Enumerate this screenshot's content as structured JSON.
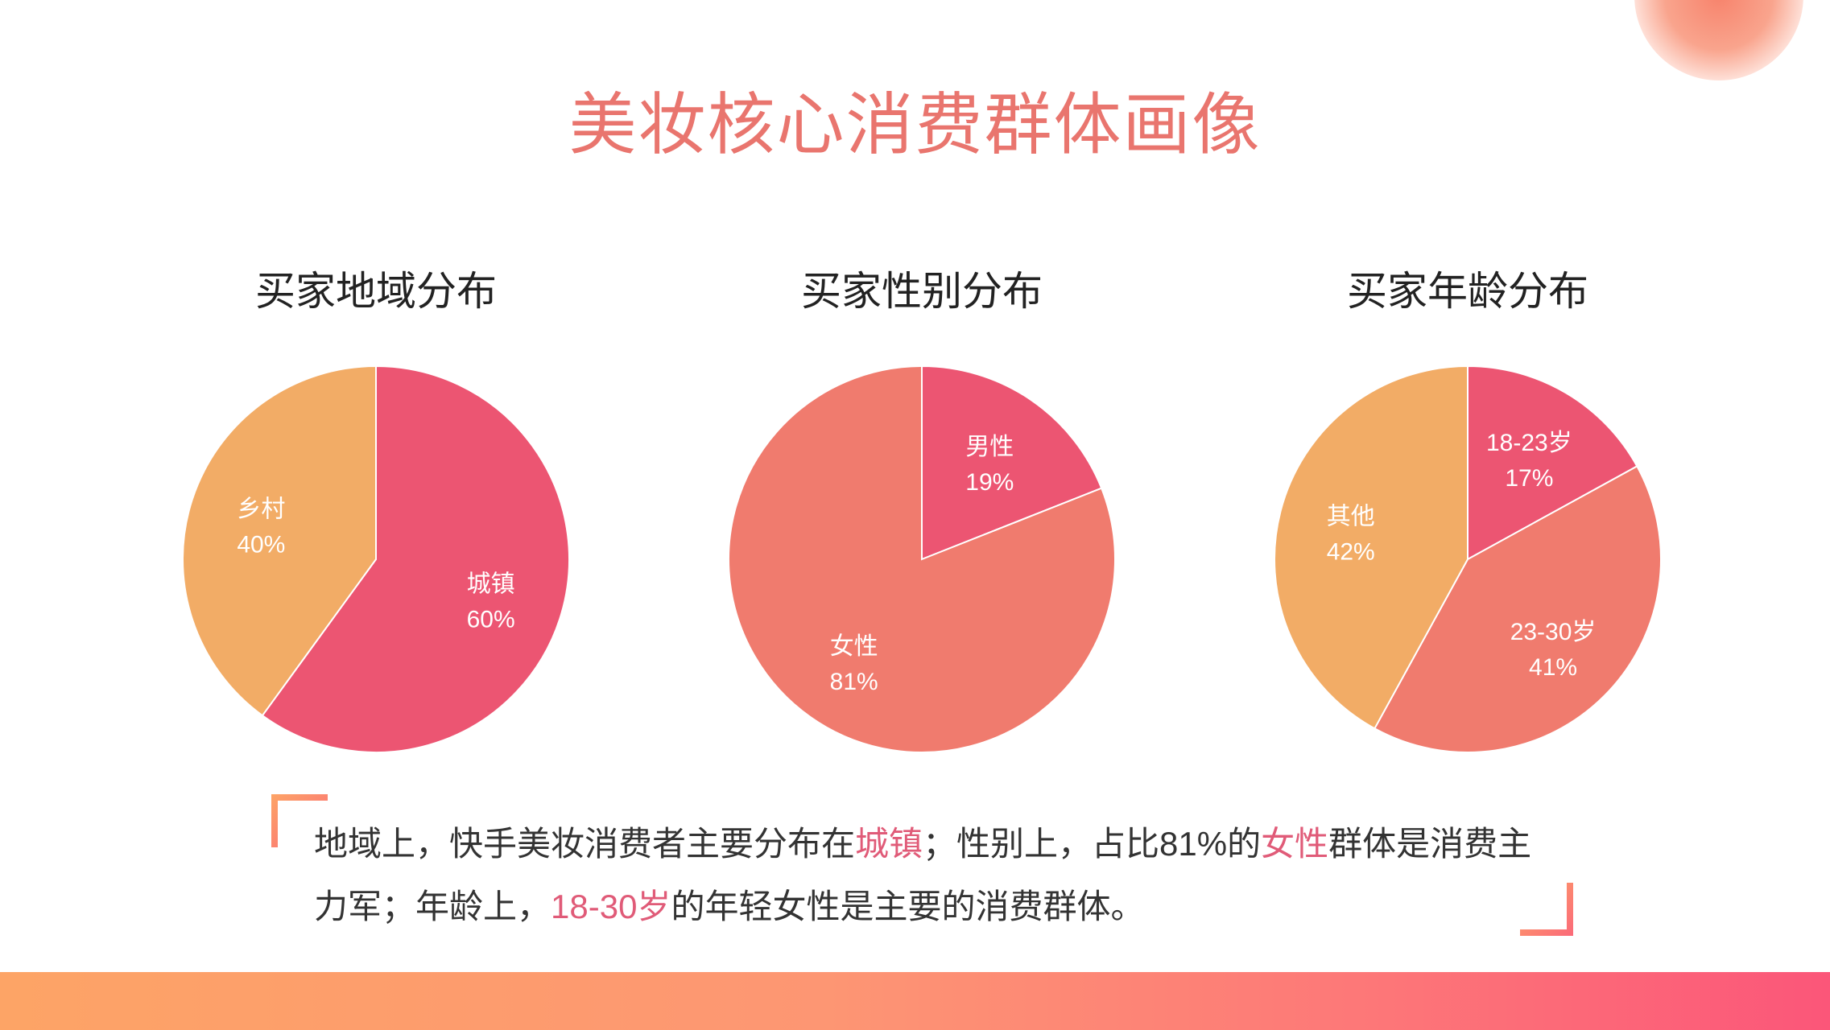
{
  "title": "美妆核心消费群体画像",
  "colors": {
    "title": "#e9756e",
    "pink": "#ec5572",
    "coral": "#f07b6e",
    "orange": "#f2ac66",
    "highlight": "#e05b78"
  },
  "chart_data": [
    {
      "type": "pie",
      "title": "买家地域分布",
      "slices": [
        {
          "label": "城镇",
          "value": 60,
          "display": "60%",
          "color": "#ec5572"
        },
        {
          "label": "乡村",
          "value": 40,
          "display": "40%",
          "color": "#f2ac66"
        }
      ]
    },
    {
      "type": "pie",
      "title": "买家性别分布",
      "slices": [
        {
          "label": "男性",
          "value": 19,
          "display": "19%",
          "color": "#ec5572"
        },
        {
          "label": "女性",
          "value": 81,
          "display": "81%",
          "color": "#f07b6e"
        }
      ]
    },
    {
      "type": "pie",
      "title": "买家年龄分布",
      "slices": [
        {
          "label": "18-23岁",
          "value": 17,
          "display": "17%",
          "color": "#ec5572"
        },
        {
          "label": "23-30岁",
          "value": 41,
          "display": "41%",
          "color": "#f07b6e"
        },
        {
          "label": "其他",
          "value": 42,
          "display": "42%",
          "color": "#f2ac66"
        }
      ]
    }
  ],
  "summary": {
    "p1": "地域上，快手美妆消费者主要分布在",
    "h1": "城镇",
    "p2": "；性别上，占比81%的",
    "h2": "女性",
    "p3": "群体是消费主力军；年龄上，",
    "h3": "18-30岁",
    "p4": "的年轻女性是主要的消费群体。"
  }
}
